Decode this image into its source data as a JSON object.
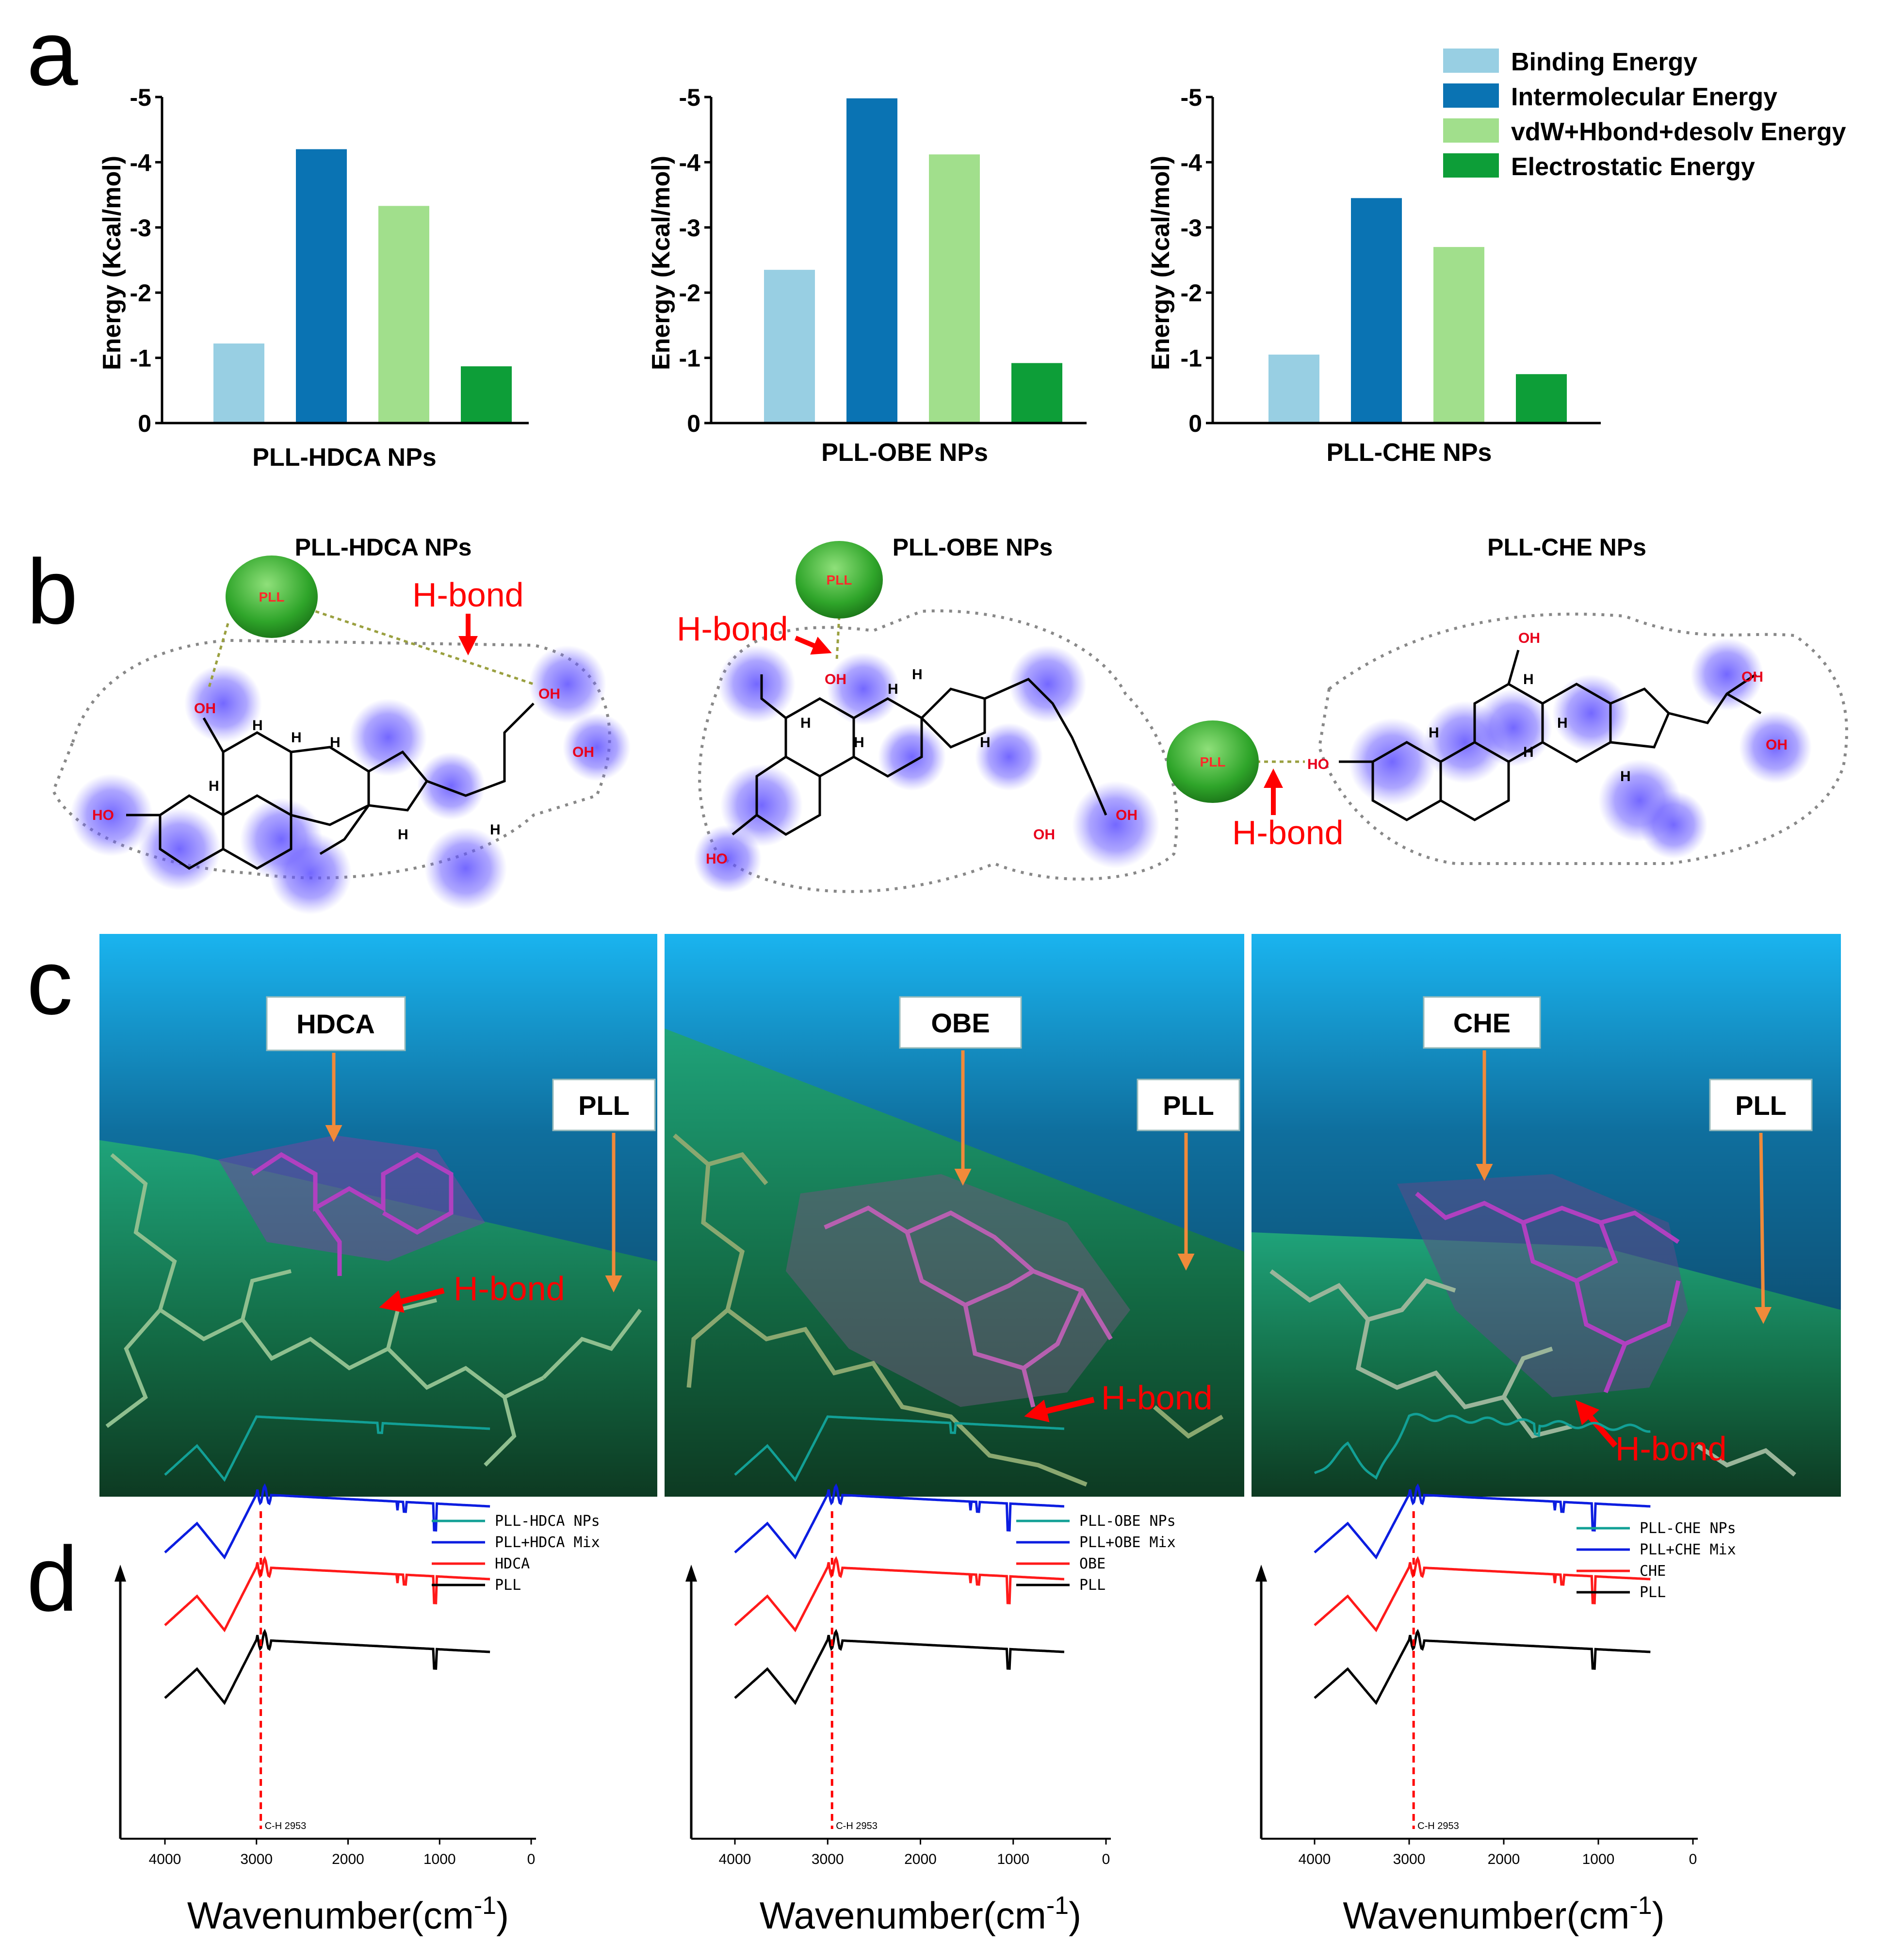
{
  "panels": {
    "a": "a",
    "b": "b",
    "c": "c",
    "d": "d"
  },
  "colors": {
    "binding": "#98cfe3",
    "intermolecular": "#0a73b3",
    "vdw": "#a1df8c",
    "electrostatic": "#0d9e38",
    "accent_red": "#ff0000",
    "arrow_orange": "#f08a3a"
  },
  "legend_a": [
    "Binding Energy",
    "Intermolecular Energy",
    "vdW+Hbond+desolv Energy",
    "Electrostatic Energy"
  ],
  "chart_data": [
    {
      "type": "bar",
      "title": "",
      "xlabel": "PLL-HDCA NPs",
      "ylabel": "Energy (Kcal/mol)",
      "ylim": [
        0,
        -5
      ],
      "yticks": [
        "0",
        "-1",
        "-2",
        "-3",
        "-4",
        "-5"
      ],
      "categories": [
        "Binding Energy",
        "Intermolecular Energy",
        "vdW+Hbond+desolv Energy",
        "Electrostatic Energy"
      ],
      "values": [
        -1.22,
        -4.2,
        -3.33,
        -0.87
      ]
    },
    {
      "type": "bar",
      "title": "",
      "xlabel": "PLL-OBE NPs",
      "ylabel": "Energy (Kcal/mol)",
      "ylim": [
        0,
        -5
      ],
      "yticks": [
        "0",
        "-1",
        "-2",
        "-3",
        "-4",
        "-5"
      ],
      "categories": [
        "Binding Energy",
        "Intermolecular Energy",
        "vdW+Hbond+desolv Energy",
        "Electrostatic Energy"
      ],
      "values": [
        -2.35,
        -4.98,
        -4.12,
        -0.92
      ]
    },
    {
      "type": "bar",
      "title": "",
      "xlabel": "PLL-CHE NPs",
      "ylabel": "Energy (Kcal/mol)",
      "ylim": [
        0,
        -5
      ],
      "yticks": [
        "0",
        "-1",
        "-2",
        "-3",
        "-4",
        "-5"
      ],
      "categories": [
        "Binding Energy",
        "Intermolecular Energy",
        "vdW+Hbond+desolv Energy",
        "Electrostatic Energy"
      ],
      "values": [
        -1.05,
        -3.45,
        -2.7,
        -0.75
      ]
    }
  ],
  "panel_b": {
    "titles": [
      "PLL-HDCA NPs",
      "PLL-OBE NPs",
      "PLL-CHE NPs"
    ],
    "hbond": "H-bond",
    "pll": "PLL",
    "oh": "OH",
    "ho": "HO",
    "h": "H"
  },
  "panel_c": {
    "ligands": [
      "HDCA",
      "OBE",
      "CHE"
    ],
    "pll": "PLL",
    "hbond": "H-bond"
  },
  "panel_d": [
    {
      "legend": [
        "PLL-HDCA NPs",
        "PLL+HDCA Mix",
        "HDCA",
        "PLL"
      ],
      "annotation": "C-H 2953"
    },
    {
      "legend": [
        "PLL-OBE NPs",
        "PLL+OBE Mix",
        "OBE",
        "PLL"
      ],
      "annotation": "C-H 2953"
    },
    {
      "legend": [
        "PLL-CHE NPs",
        "PLL+CHE Mix",
        "CHE",
        "PLL"
      ],
      "annotation": "C-H 2953"
    }
  ],
  "ir_colors": [
    "#12a096",
    "#0b1de0",
    "#ff1a1a",
    "#000000"
  ],
  "ir_xticks": [
    "4000",
    "3000",
    "2000",
    "1000",
    "0"
  ],
  "ir_xlabel": "Wavenumber(cm",
  "ir_xlabel_sup": "-1",
  "ir_xlabel_end": ")"
}
